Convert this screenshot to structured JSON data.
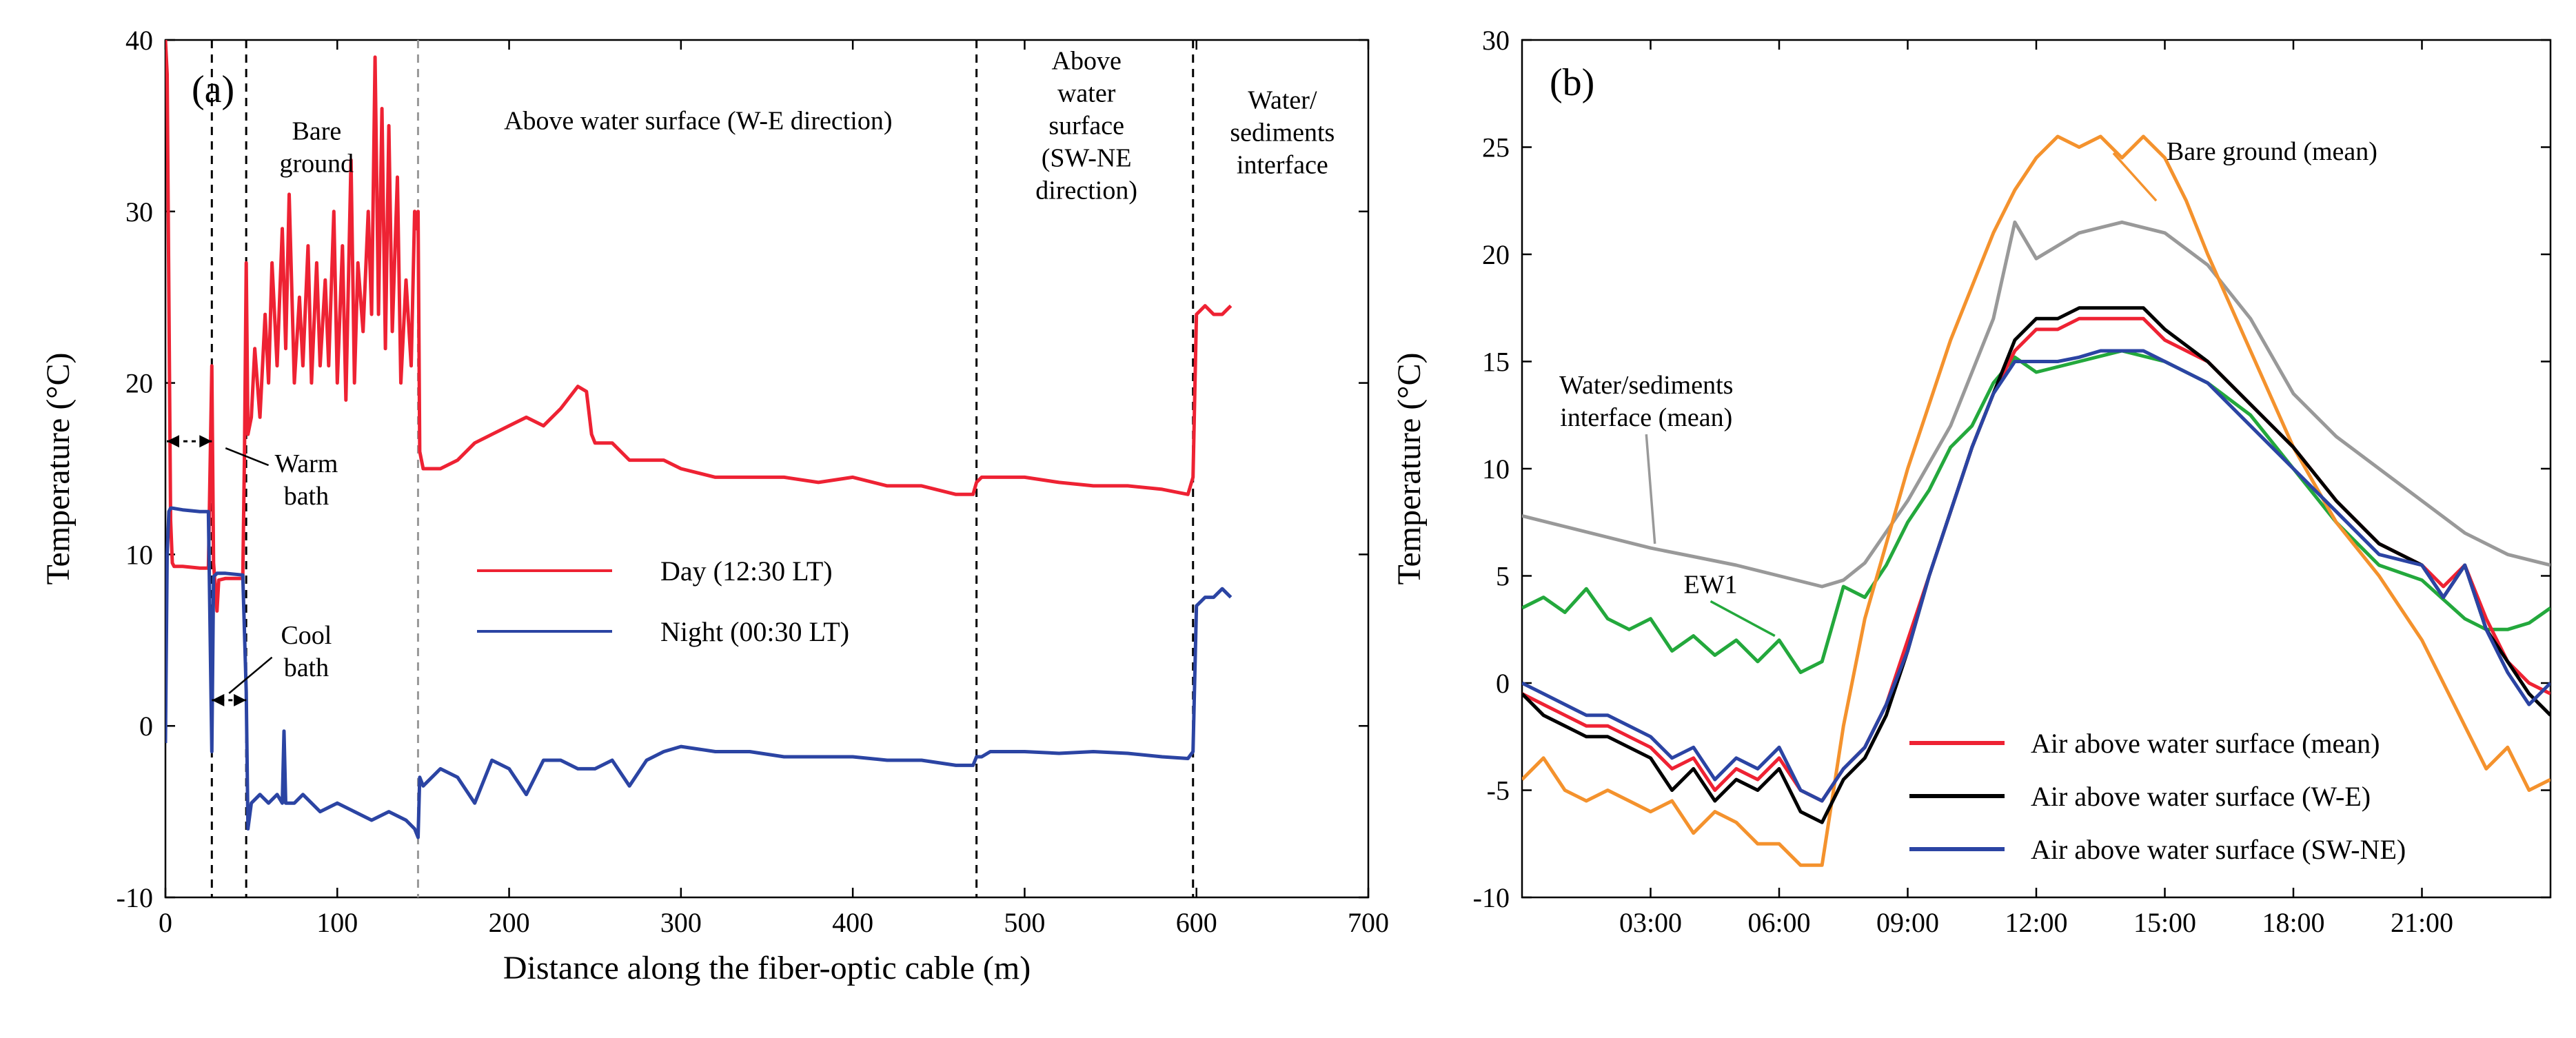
{
  "chart_data": [
    {
      "type": "line",
      "panel_label": "(a)",
      "xlabel": "Distance along the fiber-optic cable (m)",
      "ylabel": "Temperature (°C)",
      "xlim": [
        0,
        700
      ],
      "ylim": [
        -10,
        40
      ],
      "xticks": [
        0,
        100,
        200,
        300,
        400,
        500,
        600,
        700
      ],
      "yticks": [
        -10,
        0,
        10,
        20,
        30,
        40
      ],
      "vlines": [
        {
          "x": 27,
          "style": "dashed",
          "color": "#000000"
        },
        {
          "x": 47,
          "style": "dashed",
          "color": "#000000"
        },
        {
          "x": 147,
          "style": "dashed",
          "color": "#999999"
        },
        {
          "x": 472,
          "style": "dashed",
          "color": "#000000"
        },
        {
          "x": 598,
          "style": "dashed",
          "color": "#000000"
        }
      ],
      "annotations": [
        {
          "lines": [
            "Bare",
            "ground"
          ],
          "x": 88,
          "y": 34.2
        },
        {
          "lines": [
            "Above water surface (W-E direction)"
          ],
          "x": 310,
          "y": 34.8
        },
        {
          "lines": [
            "Above",
            "water",
            "surface",
            "(SW-NE",
            "direction)"
          ],
          "x": 536,
          "y": 38.3
        },
        {
          "lines": [
            "Water/",
            "sediments",
            "interface"
          ],
          "x": 650,
          "y": 36.0
        },
        {
          "lines": [
            "Warm",
            "bath"
          ],
          "x": 82,
          "y": 14.8
        },
        {
          "lines": [
            "Cool",
            "bath"
          ],
          "x": 82,
          "y": 4.8
        }
      ],
      "series": [
        {
          "name": "Day (12:30 LT)",
          "color": "#ee2233",
          "x": [
            0,
            1,
            2,
            3,
            4,
            5,
            10,
            20,
            25,
            27,
            28,
            30,
            31,
            35,
            45,
            46,
            47,
            48,
            50,
            52,
            55,
            58,
            60,
            62,
            65,
            68,
            70,
            72,
            75,
            78,
            80,
            83,
            85,
            88,
            90,
            93,
            95,
            98,
            100,
            103,
            105,
            108,
            110,
            112,
            115,
            118,
            120,
            122,
            124,
            126,
            128,
            130,
            132,
            135,
            137,
            140,
            143,
            145,
            146,
            147,
            148,
            150,
            160,
            170,
            180,
            190,
            200,
            210,
            220,
            230,
            240,
            245,
            248,
            250,
            260,
            270,
            280,
            290,
            300,
            320,
            340,
            360,
            380,
            400,
            420,
            440,
            460,
            470,
            472,
            475,
            480,
            500,
            520,
            540,
            560,
            580,
            595,
            598,
            600,
            605,
            610,
            615,
            620
          ],
          "values": [
            40,
            38,
            25,
            12,
            9.5,
            9.3,
            9.3,
            9.2,
            9.2,
            21,
            9.5,
            6.7,
            8.5,
            8.6,
            8.6,
            16,
            27,
            17,
            18,
            22,
            18,
            24,
            20,
            27,
            21,
            29,
            22,
            31,
            20,
            25,
            21,
            28,
            20,
            27,
            21,
            26,
            21,
            30,
            20,
            28,
            19,
            33,
            20,
            27,
            23,
            30,
            24,
            39,
            24,
            36,
            22,
            35,
            23,
            32,
            20,
            26,
            21,
            30,
            29,
            30,
            16,
            15,
            15,
            15.5,
            16.5,
            17,
            17.5,
            18,
            17.5,
            18.5,
            19.8,
            19.5,
            17,
            16.5,
            16.5,
            15.5,
            15.5,
            15.5,
            15,
            14.5,
            14.5,
            14.5,
            14.2,
            14.5,
            14,
            14,
            13.5,
            13.5,
            14.2,
            14.5,
            14.5,
            14.5,
            14.2,
            14,
            14,
            13.8,
            13.5,
            14.5,
            24,
            24.5,
            24,
            24,
            24.5
          ]
        },
        {
          "name": "Night (00:30 LT)",
          "color": "#2b44a3",
          "x": [
            0,
            1,
            2,
            3,
            4,
            10,
            20,
            25,
            27,
            28,
            30,
            35,
            45,
            47,
            48,
            50,
            55,
            60,
            65,
            68,
            69,
            70,
            75,
            80,
            90,
            100,
            110,
            120,
            130,
            140,
            145,
            147,
            148,
            150,
            160,
            170,
            180,
            190,
            200,
            210,
            220,
            230,
            240,
            250,
            260,
            270,
            280,
            290,
            300,
            320,
            340,
            360,
            380,
            400,
            420,
            440,
            460,
            470,
            472,
            475,
            480,
            500,
            520,
            540,
            560,
            580,
            595,
            598,
            600,
            605,
            610,
            615,
            620
          ],
          "values": [
            -1,
            10,
            12.5,
            12.7,
            12.7,
            12.6,
            12.5,
            12.5,
            -1.5,
            8.7,
            8.9,
            8.9,
            8.8,
            2,
            -6,
            -4.5,
            -4,
            -4.5,
            -4,
            -4.5,
            -0.3,
            -4.5,
            -4.5,
            -4,
            -5,
            -4.5,
            -5,
            -5.5,
            -5,
            -5.5,
            -6,
            -6.5,
            -3,
            -3.5,
            -2.5,
            -3,
            -4.5,
            -2,
            -2.5,
            -4,
            -2,
            -2,
            -2.5,
            -2.5,
            -2,
            -3.5,
            -2,
            -1.5,
            -1.2,
            -1.5,
            -1.5,
            -1.8,
            -1.8,
            -1.8,
            -2,
            -2,
            -2.3,
            -2.3,
            -1.8,
            -1.8,
            -1.5,
            -1.5,
            -1.6,
            -1.5,
            -1.6,
            -1.8,
            -1.9,
            -1.5,
            7,
            7.5,
            7.5,
            8,
            7.5
          ]
        }
      ],
      "legend": {
        "position": "center-right",
        "entries": [
          "Day (12:30 LT)",
          "Night (00:30 LT)"
        ]
      }
    },
    {
      "type": "line",
      "panel_label": "(b)",
      "xlabel": "",
      "ylabel": "Temperature (°C)",
      "xlim": [
        0,
        24
      ],
      "ylim": [
        -10,
        30
      ],
      "xticks": [
        3,
        6,
        9,
        12,
        15,
        18,
        21
      ],
      "xtick_labels": [
        "03:00",
        "06:00",
        "09:00",
        "12:00",
        "15:00",
        "18:00",
        "21:00"
      ],
      "yticks": [
        -10,
        -5,
        0,
        5,
        10,
        15,
        20,
        25,
        30
      ],
      "annotations": [
        {
          "lines": [
            "Bare ground (mean)"
          ],
          "x": 17.5,
          "y": 24.4,
          "pointer_to": [
            14.8,
            22.5
          ],
          "color": "#f4922d"
        },
        {
          "lines": [
            "Water/sediments",
            "interface (mean)"
          ],
          "x": 2.9,
          "y": 13.5,
          "pointer_to": [
            3.1,
            6.5
          ],
          "color": "#999999"
        },
        {
          "lines": [
            "EW1"
          ],
          "x": 4.4,
          "y": 4.2,
          "pointer_to": [
            5.9,
            2.2
          ],
          "color": "#23a83c"
        }
      ],
      "series": [
        {
          "name": "Water/sediments interface (mean)",
          "color": "#999999",
          "x": [
            0,
            1,
            2,
            3,
            4,
            5,
            6,
            7,
            7.5,
            8,
            9,
            10,
            11,
            11.5,
            12,
            13,
            14,
            15,
            16,
            17,
            18,
            19,
            20,
            21,
            22,
            23,
            24
          ],
          "values": [
            7.8,
            7.3,
            6.8,
            6.3,
            5.9,
            5.5,
            5,
            4.5,
            4.8,
            5.6,
            8.5,
            12,
            17,
            21.5,
            19.8,
            21,
            21.5,
            21,
            19.5,
            17,
            13.5,
            11.5,
            10,
            8.5,
            7,
            6,
            5.5
          ]
        },
        {
          "name": "EW1",
          "color": "#23a83c",
          "x": [
            0,
            0.5,
            1,
            1.5,
            2,
            2.5,
            3,
            3.5,
            4,
            4.5,
            5,
            5.5,
            6,
            6.5,
            7,
            7.5,
            8,
            8.5,
            9,
            9.5,
            10,
            10.5,
            11,
            11.5,
            12,
            13,
            14,
            15,
            16,
            17,
            18,
            19,
            20,
            21,
            22,
            22.5,
            23,
            23.5,
            24
          ],
          "values": [
            3.5,
            4,
            3.3,
            4.4,
            3,
            2.5,
            3,
            1.5,
            2.2,
            1.3,
            2,
            1,
            2,
            0.5,
            1,
            4.5,
            4,
            5.5,
            7.5,
            9,
            11,
            12,
            14,
            15.2,
            14.5,
            15,
            15.5,
            15,
            14,
            12.5,
            10,
            7.5,
            5.5,
            4.8,
            3,
            2.5,
            2.5,
            2.8,
            3.5
          ]
        },
        {
          "name": "Bare ground (mean)",
          "color": "#f4922d",
          "x": [
            0,
            0.5,
            1,
            1.5,
            2,
            2.5,
            3,
            3.5,
            4,
            4.5,
            5,
            5.5,
            6,
            6.5,
            7,
            7.5,
            8,
            9,
            10,
            11,
            11.5,
            12,
            12.5,
            13,
            13.5,
            14,
            14.5,
            15,
            15.5,
            16,
            17,
            18,
            19,
            20,
            21,
            21.5,
            22,
            22.5,
            23,
            23.5,
            24
          ],
          "values": [
            -4.5,
            -3.5,
            -5,
            -5.5,
            -5,
            -5.5,
            -6,
            -5.5,
            -7,
            -6,
            -6.5,
            -7.5,
            -7.5,
            -8.5,
            -8.5,
            -2,
            3,
            10,
            16,
            21,
            23,
            24.5,
            25.5,
            25,
            25.5,
            24.5,
            25.5,
            24.5,
            22.5,
            20,
            15.5,
            11,
            7.5,
            5,
            2,
            0,
            -2,
            -4,
            -3,
            -5,
            -4.5
          ]
        },
        {
          "name": "Air above water surface (mean)",
          "color": "#ee2233",
          "x": [
            0,
            0.5,
            1,
            1.5,
            2,
            2.5,
            3,
            3.5,
            4,
            4.5,
            5,
            5.5,
            6,
            6.5,
            7,
            7.5,
            8,
            8.5,
            9,
            9.5,
            10,
            10.5,
            11,
            11.5,
            12,
            12.5,
            13,
            13.5,
            14,
            14.5,
            15,
            16,
            17,
            18,
            19,
            20,
            21,
            21.5,
            22,
            22.5,
            23,
            23.5,
            24
          ],
          "values": [
            -0.5,
            -1,
            -1.5,
            -2,
            -2,
            -2.5,
            -3,
            -4,
            -3.5,
            -5,
            -4,
            -4.5,
            -3.5,
            -5,
            -5.5,
            -4,
            -3,
            -1,
            2,
            5,
            8,
            11,
            13.5,
            15.5,
            16.5,
            16.5,
            17,
            17,
            17,
            17,
            16,
            15,
            13,
            11,
            8.5,
            6.5,
            5.5,
            4.5,
            5.5,
            3,
            1,
            0,
            -0.5
          ]
        },
        {
          "name": "Air above water surface (W-E)",
          "color": "#000000",
          "x": [
            0,
            0.5,
            1,
            1.5,
            2,
            2.5,
            3,
            3.5,
            4,
            4.5,
            5,
            5.5,
            6,
            6.5,
            7,
            7.5,
            8,
            8.5,
            9,
            9.5,
            10,
            10.5,
            11,
            11.5,
            12,
            12.5,
            13,
            13.5,
            14,
            14.5,
            15,
            16,
            17,
            18,
            19,
            20,
            21,
            21.5,
            22,
            22.5,
            23,
            23.5,
            24
          ],
          "values": [
            -0.5,
            -1.5,
            -2,
            -2.5,
            -2.5,
            -3,
            -3.5,
            -5,
            -4,
            -5.5,
            -4.5,
            -5,
            -4,
            -6,
            -6.5,
            -4.5,
            -3.5,
            -1.5,
            1.5,
            5,
            8,
            11,
            13.5,
            16,
            17,
            17,
            17.5,
            17.5,
            17.5,
            17.5,
            16.5,
            15,
            13,
            11,
            8.5,
            6.5,
            5.5,
            4,
            5.5,
            2.5,
            1,
            -0.5,
            -1.5
          ]
        },
        {
          "name": "Air above water surface (SW-NE)",
          "color": "#2b44a3",
          "x": [
            0,
            0.5,
            1,
            1.5,
            2,
            2.5,
            3,
            3.5,
            4,
            4.5,
            5,
            5.5,
            6,
            6.5,
            7,
            7.5,
            8,
            8.5,
            9,
            9.5,
            10,
            10.5,
            11,
            11.5,
            12,
            12.5,
            13,
            13.5,
            14,
            14.5,
            15,
            16,
            17,
            18,
            19,
            20,
            21,
            21.5,
            22,
            22.5,
            23,
            23.5,
            24
          ],
          "values": [
            0,
            -0.5,
            -1,
            -1.5,
            -1.5,
            -2,
            -2.5,
            -3.5,
            -3,
            -4.5,
            -3.5,
            -4,
            -3,
            -5,
            -5.5,
            -4,
            -3,
            -1,
            1.5,
            5,
            8,
            11,
            13.5,
            15,
            15,
            15,
            15.2,
            15.5,
            15.5,
            15.5,
            15,
            14,
            12,
            10,
            8,
            6,
            5.5,
            4,
            5.5,
            2.5,
            0.5,
            -1,
            0
          ]
        }
      ],
      "legend": {
        "position": "lower-right",
        "entries": [
          "Air above water surface (mean)",
          "Air above water surface (W-E)",
          "Air above water surface (SW-NE)"
        ]
      }
    }
  ]
}
